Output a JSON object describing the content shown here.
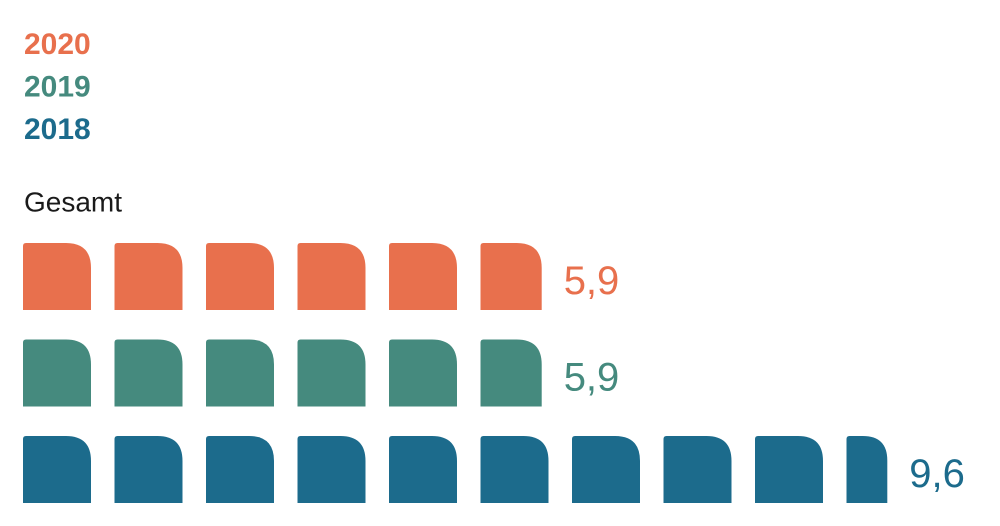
{
  "chart_data": {
    "type": "pictogram",
    "category": "Gesamt",
    "series": [
      {
        "name": "2020",
        "color": "#e8704d",
        "values": [
          5.9
        ],
        "value_labels": [
          "5,9"
        ]
      },
      {
        "name": "2019",
        "color": "#458a7e",
        "values": [
          5.9
        ],
        "value_labels": [
          "5,9"
        ]
      },
      {
        "name": "2018",
        "color": "#1c6b8c",
        "values": [
          9.6
        ],
        "value_labels": [
          "9,6"
        ]
      }
    ]
  }
}
